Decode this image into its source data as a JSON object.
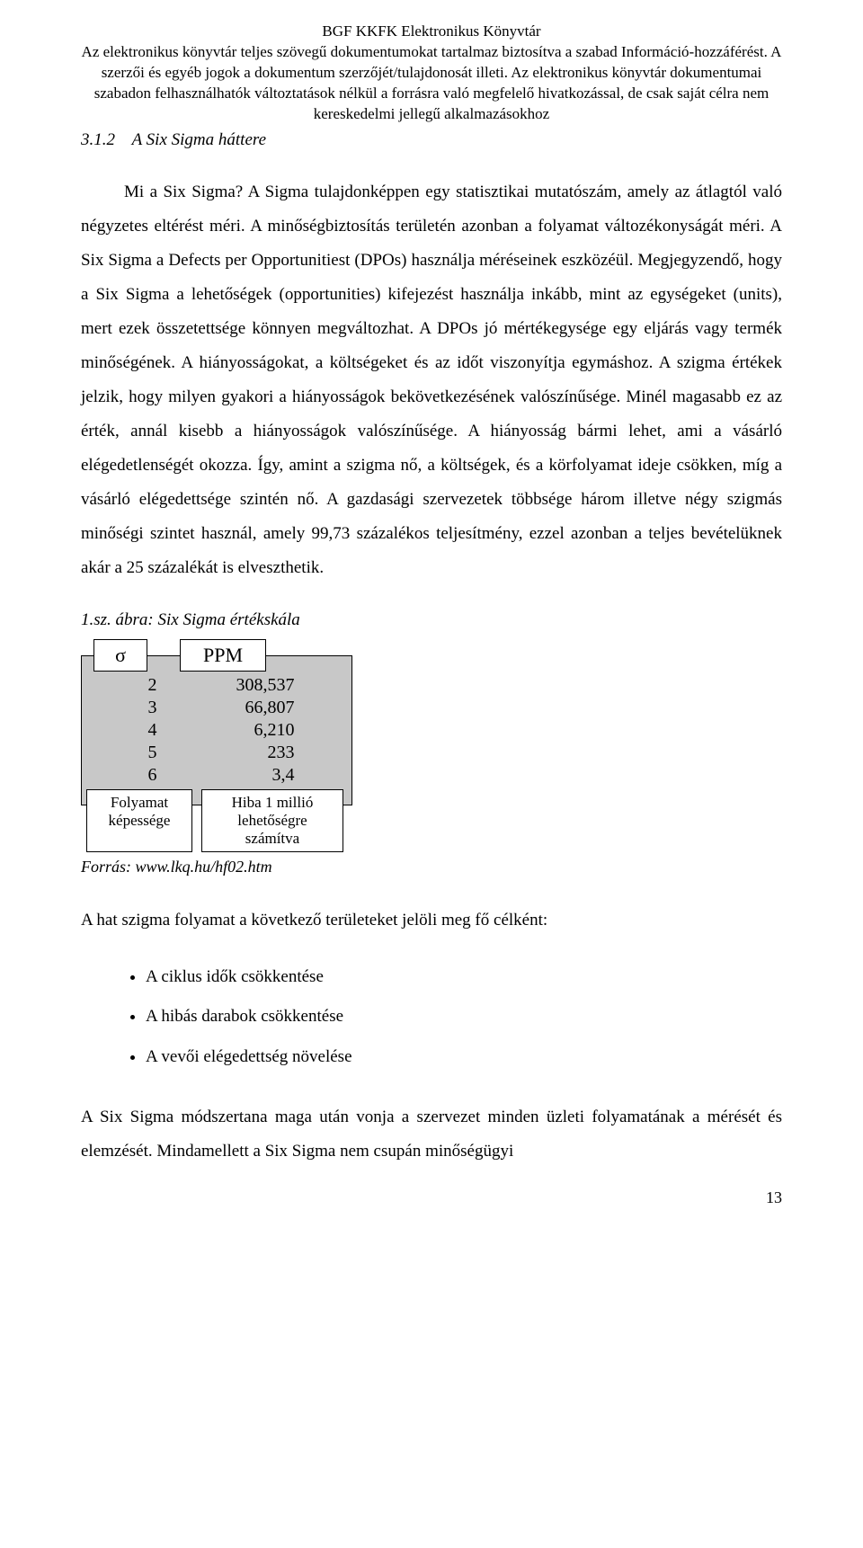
{
  "header": {
    "line1": "BGF KKFK Elektronikus Könyvtár",
    "line2": "Az elektronikus könyvtár teljes szövegű dokumentumokat tartalmaz biztosítva a szabad Információ-hozzáférést. A szerzői és egyéb jogok a dokumentum szerzőjét/tulajdonosát illeti. Az elektronikus könyvtár dokumentumai szabadon felhasználhatók változtatások nélkül a forrásra való megfelelő hivatkozással, de csak saját célra nem kereskedelmi jellegű alkalmazásokhoz"
  },
  "section": {
    "number": "3.1.2",
    "title": "A Six Sigma háttere"
  },
  "body": {
    "p1": "Mi a Six Sigma? A Sigma tulajdonképpen egy statisztikai mutatószám, amely az átlagtól való négyzetes eltérést méri. A minőségbiztosítás területén azonban a folyamat változékonyságát méri. A Six Sigma a Defects per Opportunitiest (DPOs) használja méréseinek eszközéül. Megjegyzendő, hogy a Six Sigma a lehetőségek (opportunities) kifejezést használja inkább, mint az egységeket (units), mert ezek összetettsége könnyen megváltozhat. A DPOs jó mértékegysége egy eljárás vagy termék minőségének. A hiányosságokat, a költségeket és az időt viszonyítja egymáshoz. A szigma értékek jelzik, hogy milyen gyakori a hiányosságok bekövetkezésének valószínűsége. Minél magasabb ez az érték, annál kisebb a hiányosságok valószínűsége. A hiányosság bármi lehet, ami a vásárló elégedetlenségét okozza. Így, amint a szigma nő, a költségek, és a körfolyamat ideje csökken, míg a vásárló elégedettsége szintén nő. A gazdasági szervezetek többsége három illetve négy szigmás minőségi szintet használ, amely 99,73 százalékos teljesítmény, ezzel azonban a teljes bevételüknek akár a 25 százalékát is elveszthetik."
  },
  "figure": {
    "caption": "1.sz. ábra: Six Sigma értékskála",
    "headers": {
      "sigma": "σ",
      "ppm": "PPM"
    },
    "rows": [
      {
        "sigma": "2",
        "ppm": "308,537"
      },
      {
        "sigma": "3",
        "ppm": "66,807"
      },
      {
        "sigma": "4",
        "ppm": "6,210"
      },
      {
        "sigma": "5",
        "ppm": "233"
      },
      {
        "sigma": "6",
        "ppm": "3,4"
      }
    ],
    "footer_left_l1": "Folyamat",
    "footer_left_l2": "képessége",
    "footer_right_l1": "Hiba 1 millió",
    "footer_right_l2": "lehetőségre",
    "footer_right_l3": "számítva",
    "source": "Forrás: www.lkq.hu/hf02.htm"
  },
  "after_fig": {
    "p": "A hat szigma folyamat a következő területeket jelöli meg fő célként:"
  },
  "bullets": [
    "A ciklus idők csökkentése",
    "A hibás darabok csökkentése",
    "A vevői elégedettség növelése"
  ],
  "closing": {
    "p": "A Six Sigma módszertana maga után vonja a szervezet minden üzleti folyamatának a mérését és elemzését. Mindamellett a Six Sigma nem csupán minőségügyi"
  },
  "page_number": "13"
}
